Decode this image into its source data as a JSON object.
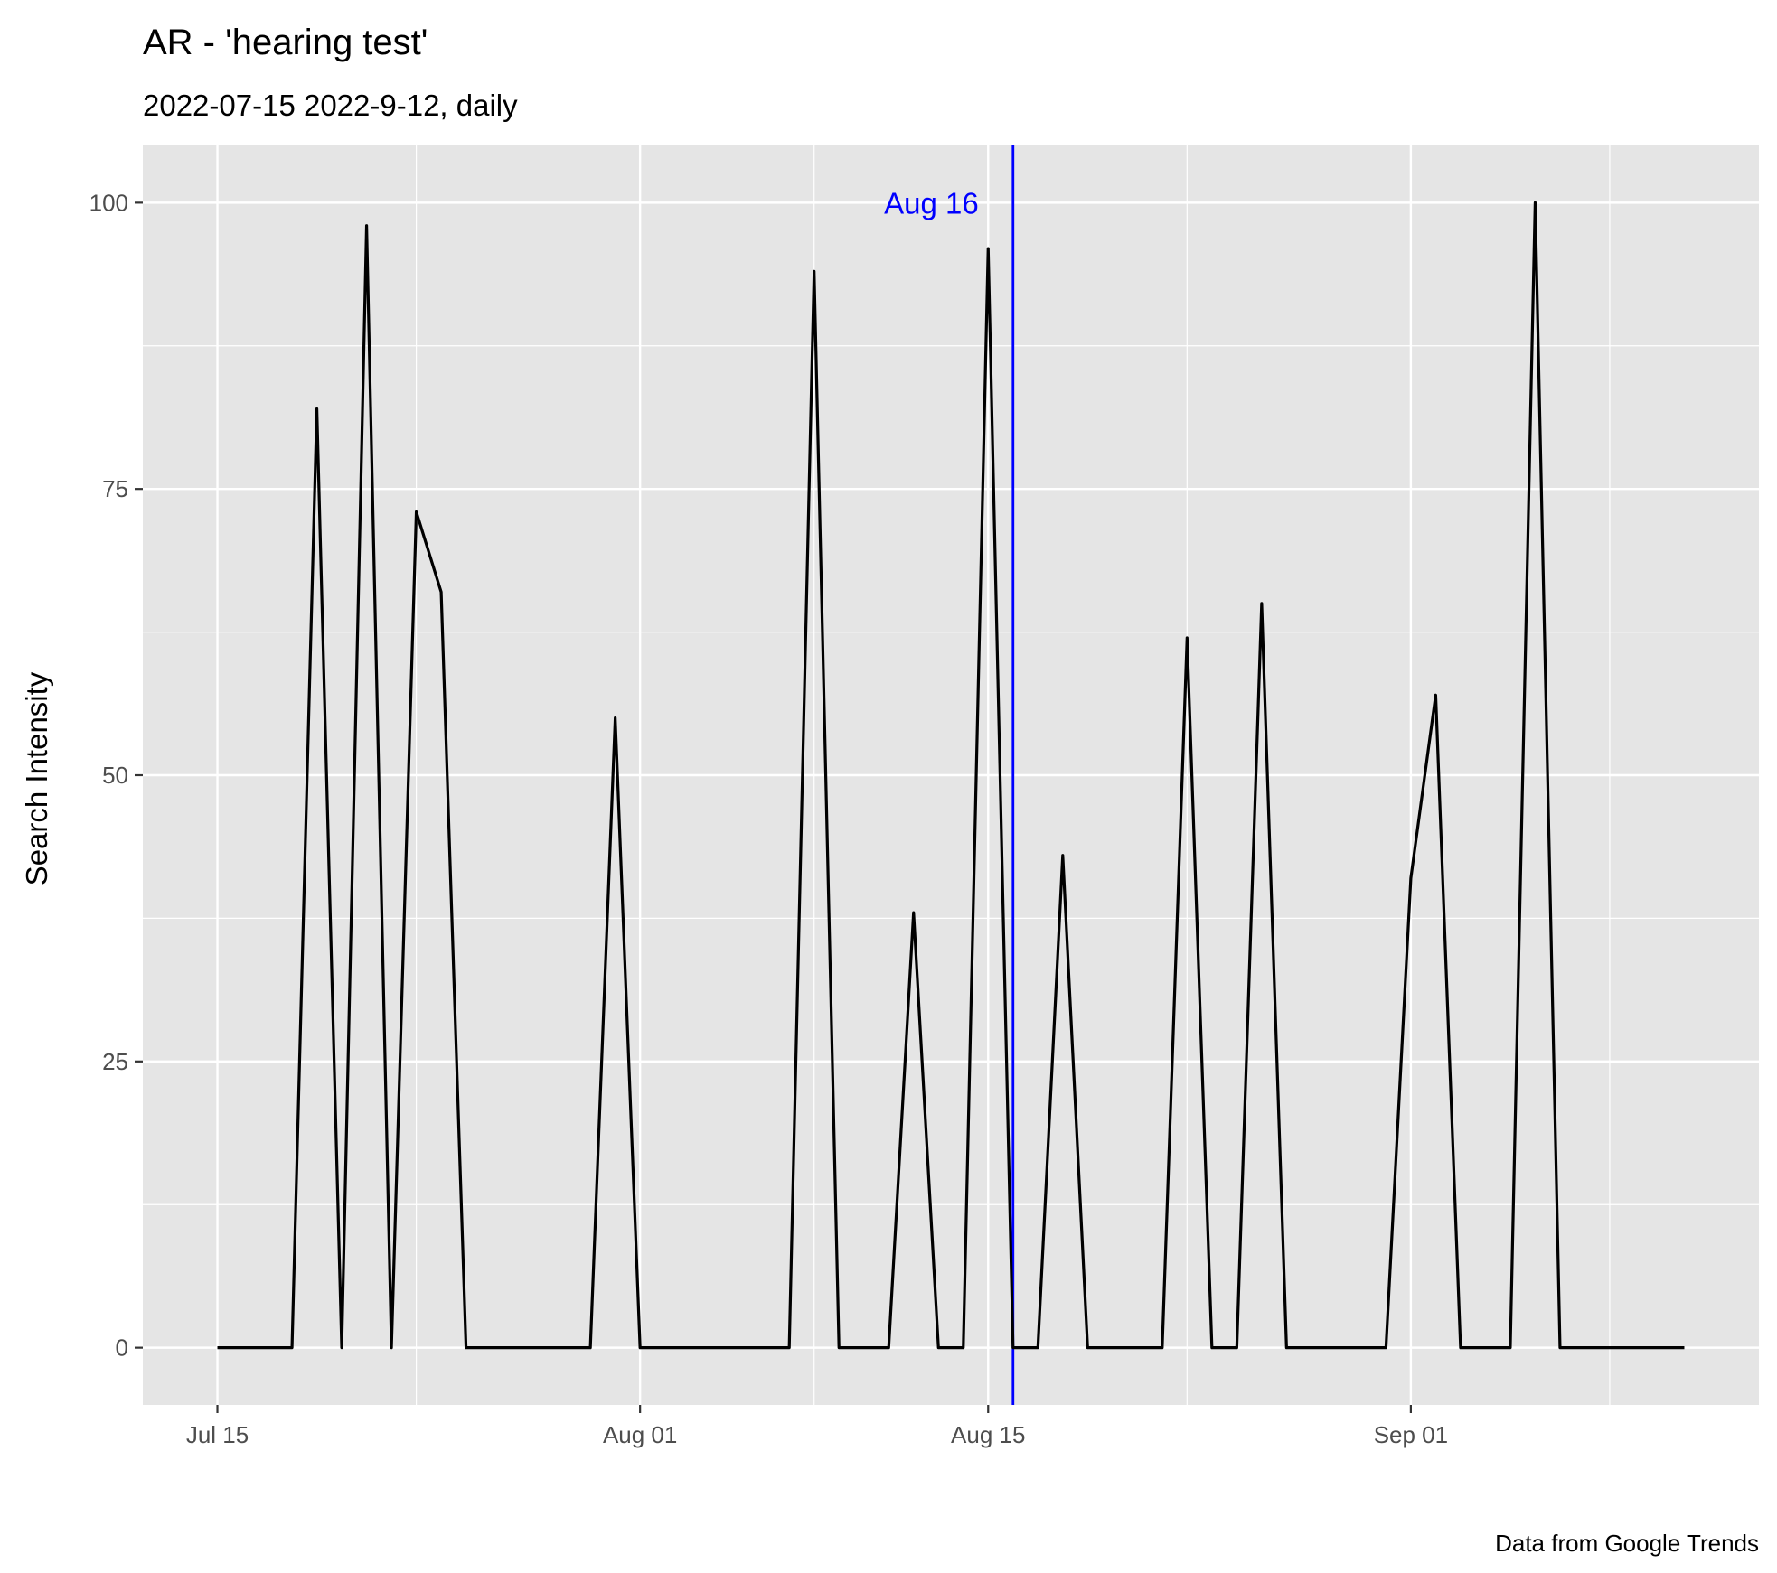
{
  "chart_data": {
    "type": "line",
    "title": "AR  - 'hearing test'",
    "subtitle": "2022-07-15 2022-9-12, daily",
    "ylabel": "Search Intensity",
    "xlabel": "",
    "caption": "Data from Google Trends",
    "x_start": "2022-07-15",
    "x_end": "2022-09-12",
    "xlim": [
      "2022-07-12",
      "2022-09-15"
    ],
    "ylim": [
      -5,
      105
    ],
    "x_ticks": [
      {
        "date": "2022-07-15",
        "label": "Jul 15"
      },
      {
        "date": "2022-08-01",
        "label": "Aug 01"
      },
      {
        "date": "2022-08-15",
        "label": "Aug 15"
      },
      {
        "date": "2022-09-01",
        "label": "Sep 01"
      }
    ],
    "y_ticks": [
      0,
      25,
      50,
      75,
      100
    ],
    "grid": true,
    "line_color": "#000000",
    "panel_background": "#e5e5e5",
    "grid_color": "#ffffff",
    "x": [
      "2022-07-15",
      "2022-07-16",
      "2022-07-17",
      "2022-07-18",
      "2022-07-19",
      "2022-07-20",
      "2022-07-21",
      "2022-07-22",
      "2022-07-23",
      "2022-07-24",
      "2022-07-25",
      "2022-07-26",
      "2022-07-27",
      "2022-07-28",
      "2022-07-29",
      "2022-07-30",
      "2022-07-31",
      "2022-08-01",
      "2022-08-02",
      "2022-08-03",
      "2022-08-04",
      "2022-08-05",
      "2022-08-06",
      "2022-08-07",
      "2022-08-08",
      "2022-08-09",
      "2022-08-10",
      "2022-08-11",
      "2022-08-12",
      "2022-08-13",
      "2022-08-14",
      "2022-08-15",
      "2022-08-16",
      "2022-08-17",
      "2022-08-18",
      "2022-08-19",
      "2022-08-20",
      "2022-08-21",
      "2022-08-22",
      "2022-08-23",
      "2022-08-24",
      "2022-08-25",
      "2022-08-26",
      "2022-08-27",
      "2022-08-28",
      "2022-08-29",
      "2022-08-30",
      "2022-08-31",
      "2022-09-01",
      "2022-09-02",
      "2022-09-03",
      "2022-09-04",
      "2022-09-05",
      "2022-09-06",
      "2022-09-07",
      "2022-09-08",
      "2022-09-09",
      "2022-09-10",
      "2022-09-11",
      "2022-09-12"
    ],
    "series": [
      {
        "values": [
          0,
          0,
          0,
          0,
          82,
          0,
          98,
          0,
          73,
          66,
          0,
          0,
          0,
          0,
          0,
          0,
          55,
          0,
          0,
          0,
          0,
          0,
          0,
          0,
          94,
          0,
          0,
          0,
          38,
          0,
          0,
          96,
          0,
          0,
          43,
          0,
          0,
          0,
          0,
          62,
          0,
          0,
          65,
          0,
          0,
          0,
          0,
          0,
          41,
          57,
          0,
          0,
          0,
          100,
          0,
          0,
          0,
          0,
          0,
          0
        ]
      }
    ],
    "annotations": [
      {
        "type": "vline",
        "date": "2022-08-16",
        "label": "Aug 16",
        "color": "#0000ff"
      }
    ]
  }
}
